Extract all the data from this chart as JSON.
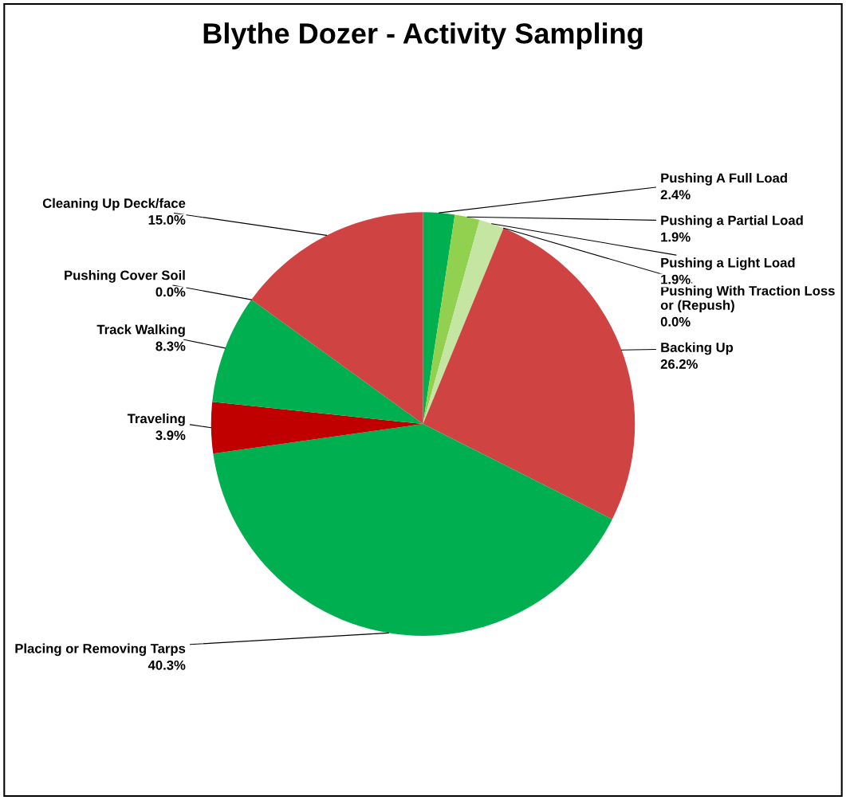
{
  "chart_data": {
    "type": "pie",
    "title": "Blythe Dozer - Activity Sampling",
    "categories": [
      "Pushing A Full Load",
      "Pushing a Partial Load",
      "Pushing a Light Load",
      "Pushing With Traction Loss or (Repush)",
      "Backing Up",
      "Placing or Removing Tarps",
      "Traveling",
      "Track Walking",
      "Pushing Cover Soil",
      "Cleaning Up Deck/face"
    ],
    "values": [
      2.4,
      1.9,
      1.9,
      0.0,
      26.2,
      40.3,
      3.9,
      8.3,
      0.0,
      15.0
    ],
    "colors": [
      "#00b050",
      "#92d050",
      "#c4e6a2",
      "#00b050",
      "#d04343",
      "#00b050",
      "#c00000",
      "#00b050",
      "#00b050",
      "#d04343"
    ],
    "value_labels": [
      "2.4%",
      "1.9%",
      "1.9%",
      "0.0%",
      "26.2%",
      "40.3%",
      "3.9%",
      "8.3%",
      "0.0%",
      "15.0%"
    ]
  }
}
